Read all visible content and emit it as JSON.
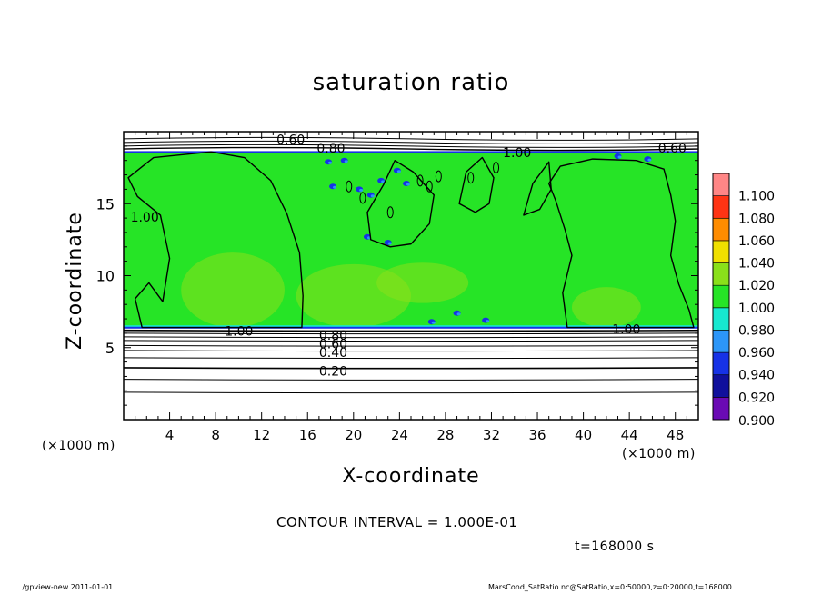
{
  "chart_data": {
    "type": "heatmap",
    "title": "saturation ratio",
    "xlabel": "X-coordinate",
    "ylabel": "Z-coordinate",
    "x_unit": "(×1000 m)",
    "z_unit": "(×1000 m)",
    "xlim": [
      0,
      50
    ],
    "ylim": [
      0,
      20
    ],
    "x_ticks": [
      4,
      8,
      12,
      16,
      20,
      24,
      28,
      32,
      36,
      40,
      44,
      48
    ],
    "y_ticks": [
      5,
      10,
      15
    ],
    "colorbar": {
      "levels": [
        0.9,
        0.92,
        0.94,
        0.96,
        0.98,
        1.0,
        1.02,
        1.04,
        1.06,
        1.08,
        1.1
      ],
      "level_labels": [
        "0.900",
        "0.920",
        "0.940",
        "0.960",
        "0.980",
        "1.000",
        "1.020",
        "1.040",
        "1.060",
        "1.080",
        "1.100"
      ],
      "colors": [
        "#6a0ab4",
        "#10109c",
        "#1632e6",
        "#2c96f8",
        "#16e8d0",
        "#26e426",
        "#8ae01a",
        "#f0e000",
        "#ff8c00",
        "#ff3414",
        "#ff8686"
      ]
    },
    "contour_labels": [
      {
        "text": "0.60",
        "x": 13.3,
        "z": 19.4
      },
      {
        "text": "0.80",
        "x": 16.8,
        "z": 18.8
      },
      {
        "text": "1.00",
        "x": 33.0,
        "z": 18.5
      },
      {
        "text": "0.60",
        "x": 46.5,
        "z": 18.8
      },
      {
        "text": "1.00",
        "x": 0.6,
        "z": 14.0
      },
      {
        "text": "1.00",
        "x": 8.8,
        "z": 6.1
      },
      {
        "text": "1.00",
        "x": 42.5,
        "z": 6.2
      },
      {
        "text": "0.80",
        "x": 17.0,
        "z": 5.8
      },
      {
        "text": "0.60",
        "x": 17.0,
        "z": 5.2
      },
      {
        "text": "0.40",
        "x": 17.0,
        "z": 4.6
      },
      {
        "text": "0.20",
        "x": 17.0,
        "z": 3.3
      }
    ],
    "contour_interval": "CONTOUR INTERVAL = 1.000E-01",
    "time": "t=168000 s"
  },
  "footer": {
    "left": "./gpview-new   2011-01-01",
    "right": "MarsCond_SatRatio.nc@SatRatio,x=0:50000,z=0:20000,t=168000"
  }
}
